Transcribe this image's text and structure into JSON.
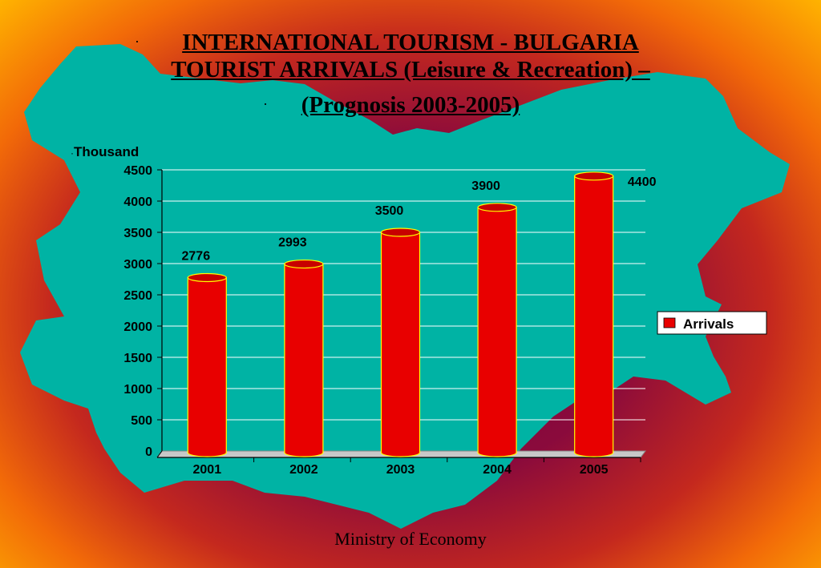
{
  "title": {
    "line1": "INTERNATIONAL TOURISM - BULGARIA",
    "line2": "TOURIST ARRIVALS  (Leisure & Recreation) –",
    "line3": " (Prognosis 2003-2005)"
  },
  "bullet": "·",
  "footer": "Ministry of  Economy",
  "colors": {
    "map": "#00b3a4",
    "bar": "#e80000",
    "bar_outline": "#ffff00"
  },
  "chart_data": {
    "type": "bar",
    "ylabel": "Thousand",
    "categories": [
      "2001",
      "2002",
      "2003",
      "2004",
      "2005"
    ],
    "series": [
      {
        "name": "Arrivals",
        "values": [
          2776,
          2993,
          3500,
          3900,
          4400
        ]
      }
    ],
    "data_labels": [
      "2776",
      "2993",
      "3500",
      "3900",
      "4400"
    ],
    "y_ticks": [
      "0",
      "500",
      "1000",
      "1500",
      "2000",
      "2500",
      "3000",
      "3500",
      "4000",
      "4500"
    ],
    "ylim": [
      0,
      4500
    ],
    "grid": true,
    "legend": "right"
  }
}
